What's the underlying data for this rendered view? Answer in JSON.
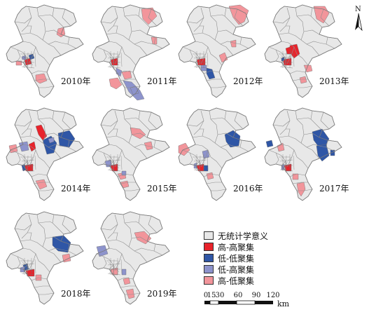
{
  "colors": {
    "none": "#e8e8e8",
    "high_high": "#e8232b",
    "low_low": "#2f56a6",
    "low_high": "#8d93cc",
    "high_low": "#f2959b",
    "border": "#8f8f8f"
  },
  "panels": [
    {
      "year": "2010年"
    },
    {
      "year": "2011年"
    },
    {
      "year": "2012年"
    },
    {
      "year": "2013年"
    },
    {
      "year": "2014年"
    },
    {
      "year": "2015年"
    },
    {
      "year": "2016年"
    },
    {
      "year": "2017年"
    },
    {
      "year": "2018年"
    },
    {
      "year": "2019年"
    }
  ],
  "legend": {
    "items": [
      {
        "label": "无统计学意义",
        "color": "#e8e8e8"
      },
      {
        "label": "高-高聚集",
        "color": "#e8232b"
      },
      {
        "label": "低-低聚集",
        "color": "#2f56a6"
      },
      {
        "label": "低-高聚集",
        "color": "#8d93cc"
      },
      {
        "label": "高-低聚集",
        "color": "#f2959b"
      }
    ]
  },
  "scalebar": {
    "ticks": [
      "0",
      "15",
      "30",
      "60",
      "90",
      "120"
    ],
    "unit": "km"
  },
  "north_arrow": {
    "letter": "N"
  }
}
